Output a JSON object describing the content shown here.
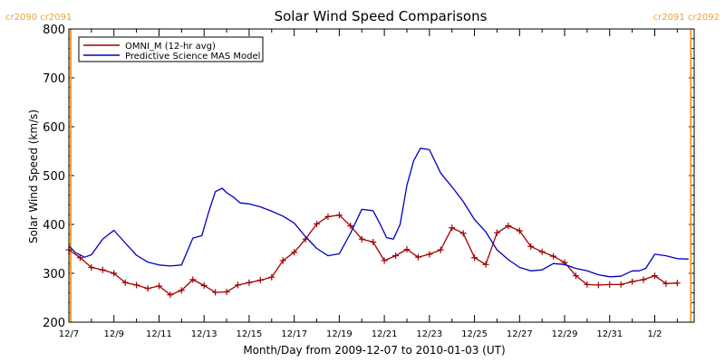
{
  "chart_data": {
    "type": "line",
    "title": "Solar Wind Speed Comparisons",
    "xlabel": "Month/Day from 2009-12-07 to 2010-01-03 (UT)",
    "ylabel": "Solar Wind Speed (km/s)",
    "xlim": [
      0,
      27.75
    ],
    "ylim": [
      200,
      800
    ],
    "x_ticks": [
      {
        "x": 0,
        "label": "12/7"
      },
      {
        "x": 2,
        "label": "12/9"
      },
      {
        "x": 4,
        "label": "12/11"
      },
      {
        "x": 6,
        "label": "12/13"
      },
      {
        "x": 8,
        "label": "12/15"
      },
      {
        "x": 10,
        "label": "12/17"
      },
      {
        "x": 12,
        "label": "12/19"
      },
      {
        "x": 14,
        "label": "12/21"
      },
      {
        "x": 16,
        "label": "12/23"
      },
      {
        "x": 18,
        "label": "12/25"
      },
      {
        "x": 20,
        "label": "12/27"
      },
      {
        "x": 22,
        "label": "12/29"
      },
      {
        "x": 24,
        "label": "12/31"
      },
      {
        "x": 26,
        "label": "1/2"
      }
    ],
    "y_ticks": [
      200,
      300,
      400,
      500,
      600,
      700,
      800
    ],
    "rotation_markers": [
      {
        "x": 0.08,
        "label": "cr2090 cr2091",
        "color": "#f0a030",
        "side": "left"
      },
      {
        "x": 27.6,
        "label": "cr2091 cr2092",
        "color": "#f0a030",
        "side": "right"
      }
    ],
    "legend": {
      "placement": "top-left"
    },
    "series": [
      {
        "name": "OMNI_M (12-hr avg)",
        "color": "#a00000",
        "marker": "plus",
        "x": [
          0.0,
          0.5,
          1.0,
          1.5,
          2.0,
          2.5,
          3.0,
          3.5,
          4.0,
          4.5,
          5.0,
          5.5,
          6.0,
          6.5,
          7.0,
          7.5,
          8.0,
          8.5,
          9.0,
          9.5,
          10.0,
          10.5,
          11.0,
          11.5,
          12.0,
          12.5,
          13.0,
          13.5,
          14.0,
          14.5,
          15.0,
          15.5,
          16.0,
          16.5,
          17.0,
          17.5,
          18.0,
          18.5,
          19.0,
          19.5,
          20.0,
          20.5,
          21.0,
          21.5,
          22.0,
          22.5,
          23.0,
          23.5,
          24.0,
          24.5,
          25.0,
          25.5,
          26.0,
          26.5,
          27.0
        ],
        "y": [
          348,
          332,
          312,
          307,
          300,
          281,
          276,
          269,
          274,
          256,
          265,
          287,
          275,
          261,
          262,
          276,
          281,
          286,
          292,
          326,
          343,
          370,
          401,
          416,
          419,
          397,
          370,
          364,
          326,
          336,
          349,
          333,
          339,
          348,
          393,
          382,
          332,
          318,
          383,
          397,
          387,
          355,
          344,
          335,
          322,
          295,
          277,
          276,
          277,
          277,
          283,
          287,
          295,
          279,
          280
        ]
      },
      {
        "name": "Predictive Science MAS Model",
        "color": "#0000c0",
        "marker": "none",
        "x": [
          0.0,
          0.3,
          0.7,
          1.0,
          1.5,
          2.0,
          2.5,
          3.0,
          3.5,
          4.0,
          4.5,
          5.0,
          5.5,
          5.9,
          6.2,
          6.5,
          6.8,
          7.0,
          7.3,
          7.6,
          8.0,
          8.5,
          9.0,
          9.5,
          10.0,
          10.5,
          11.0,
          11.5,
          12.0,
          12.5,
          13.0,
          13.5,
          13.8,
          14.1,
          14.4,
          14.7,
          15.0,
          15.3,
          15.6,
          16.0,
          16.5,
          17.0,
          17.5,
          18.0,
          18.5,
          19.0,
          19.5,
          20.0,
          20.5,
          21.0,
          21.5,
          22.0,
          22.5,
          23.0,
          23.5,
          24.0,
          24.5,
          25.0,
          25.3,
          25.6,
          26.0,
          26.5,
          27.0,
          27.5
        ],
        "y": [
          356,
          342,
          333,
          338,
          370,
          388,
          362,
          337,
          323,
          317,
          315,
          317,
          372,
          377,
          425,
          467,
          474,
          465,
          456,
          444,
          442,
          436,
          427,
          417,
          403,
          375,
          351,
          336,
          340,
          382,
          431,
          428,
          402,
          373,
          370,
          400,
          480,
          530,
          556,
          553,
          505,
          477,
          447,
          410,
          385,
          348,
          328,
          312,
          305,
          307,
          320,
          318,
          310,
          305,
          297,
          293,
          294,
          305,
          305,
          310,
          339,
          336,
          330,
          329
        ]
      }
    ]
  }
}
